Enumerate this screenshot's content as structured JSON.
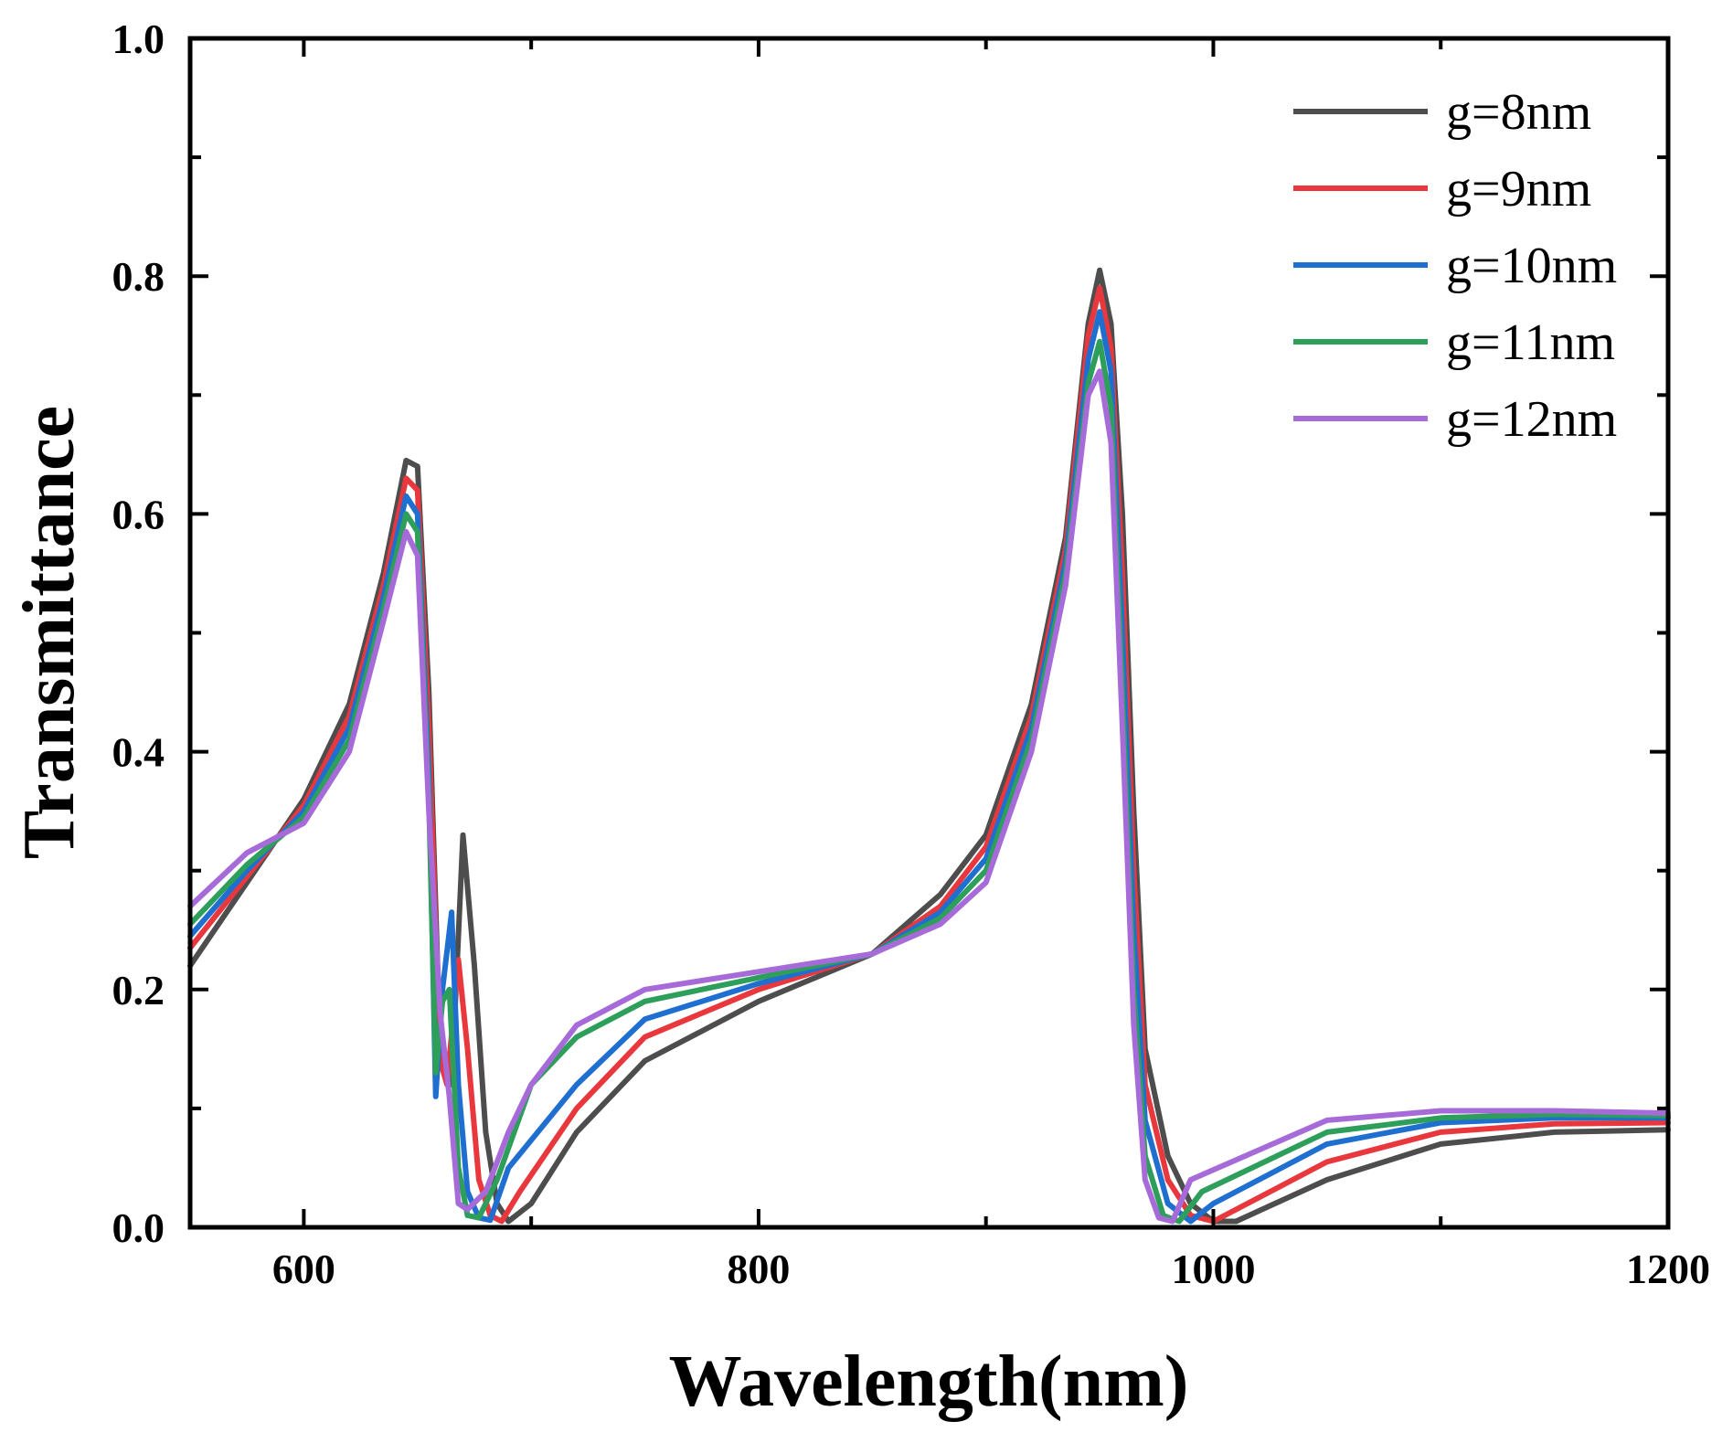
{
  "chart_data": {
    "type": "line",
    "title": "",
    "xlabel": "Wavelength(nm)",
    "ylabel": "Transmittance",
    "xlim": [
      550,
      1200
    ],
    "ylim": [
      0.0,
      1.0
    ],
    "xticks": [
      600,
      800,
      1000,
      1200
    ],
    "xtick_labels": [
      "600",
      "800",
      "1000",
      "1200"
    ],
    "yticks": [
      0.0,
      0.2,
      0.4,
      0.6,
      0.8,
      1.0
    ],
    "ytick_labels": [
      "0.0",
      "0.2",
      "0.4",
      "0.6",
      "0.8",
      "1.0"
    ],
    "grid": false,
    "legend_position": "top-right",
    "series": [
      {
        "name": "g=8nm",
        "color": "#4d4d4d",
        "x": [
          550,
          575,
          600,
          620,
          635,
          645,
          650,
          655,
          660,
          665,
          670,
          675,
          680,
          685,
          690,
          700,
          720,
          750,
          800,
          850,
          880,
          900,
          920,
          935,
          945,
          950,
          955,
          960,
          965,
          970,
          980,
          990,
          1000,
          1010,
          1050,
          1100,
          1150,
          1200
        ],
        "y": [
          0.22,
          0.29,
          0.36,
          0.44,
          0.55,
          0.645,
          0.64,
          0.45,
          0.15,
          0.12,
          0.33,
          0.22,
          0.08,
          0.02,
          0.005,
          0.02,
          0.08,
          0.14,
          0.19,
          0.23,
          0.28,
          0.33,
          0.44,
          0.58,
          0.76,
          0.805,
          0.76,
          0.6,
          0.35,
          0.15,
          0.06,
          0.02,
          0.005,
          0.005,
          0.04,
          0.07,
          0.08,
          0.082
        ]
      },
      {
        "name": "g=9nm",
        "color": "#e8383d",
        "x": [
          550,
          575,
          600,
          620,
          635,
          645,
          650,
          655,
          660,
          663,
          668,
          672,
          677,
          682,
          687,
          695,
          720,
          750,
          800,
          850,
          880,
          900,
          920,
          935,
          945,
          950,
          955,
          960,
          965,
          970,
          980,
          990,
          1000,
          1050,
          1100,
          1150,
          1200
        ],
        "y": [
          0.235,
          0.295,
          0.355,
          0.43,
          0.54,
          0.63,
          0.62,
          0.42,
          0.14,
          0.12,
          0.225,
          0.15,
          0.04,
          0.01,
          0.005,
          0.03,
          0.1,
          0.16,
          0.2,
          0.23,
          0.27,
          0.32,
          0.43,
          0.57,
          0.75,
          0.79,
          0.74,
          0.55,
          0.3,
          0.12,
          0.04,
          0.01,
          0.005,
          0.055,
          0.08,
          0.087,
          0.088
        ]
      },
      {
        "name": "g=10nm",
        "color": "#1f6fd1",
        "x": [
          550,
          575,
          600,
          620,
          635,
          645,
          650,
          655,
          658,
          661,
          665,
          668,
          672,
          677,
          682,
          690,
          720,
          750,
          800,
          850,
          880,
          900,
          920,
          935,
          945,
          950,
          955,
          960,
          965,
          970,
          980,
          990,
          1000,
          1050,
          1100,
          1150,
          1200
        ],
        "y": [
          0.245,
          0.3,
          0.35,
          0.42,
          0.53,
          0.615,
          0.6,
          0.38,
          0.11,
          0.2,
          0.265,
          0.12,
          0.03,
          0.008,
          0.006,
          0.05,
          0.12,
          0.175,
          0.205,
          0.23,
          0.265,
          0.31,
          0.42,
          0.56,
          0.73,
          0.77,
          0.72,
          0.5,
          0.25,
          0.09,
          0.02,
          0.005,
          0.02,
          0.07,
          0.088,
          0.092,
          0.092
        ]
      },
      {
        "name": "g=11nm",
        "color": "#2e9e5b",
        "x": [
          550,
          575,
          600,
          620,
          635,
          645,
          650,
          655,
          658,
          661,
          664,
          668,
          672,
          677,
          685,
          700,
          720,
          750,
          800,
          850,
          880,
          900,
          920,
          935,
          945,
          950,
          955,
          960,
          965,
          970,
          978,
          985,
          995,
          1050,
          1100,
          1150,
          1200
        ],
        "y": [
          0.255,
          0.305,
          0.345,
          0.41,
          0.52,
          0.6,
          0.585,
          0.36,
          0.13,
          0.19,
          0.2,
          0.05,
          0.01,
          0.008,
          0.04,
          0.12,
          0.16,
          0.19,
          0.21,
          0.23,
          0.26,
          0.3,
          0.41,
          0.55,
          0.71,
          0.745,
          0.69,
          0.45,
          0.2,
          0.06,
          0.01,
          0.005,
          0.03,
          0.08,
          0.092,
          0.095,
          0.094
        ]
      },
      {
        "name": "g=12nm",
        "color": "#a66bd9",
        "x": [
          550,
          575,
          600,
          620,
          635,
          645,
          650,
          655,
          660,
          664,
          668,
          672,
          680,
          690,
          700,
          720,
          750,
          800,
          850,
          880,
          900,
          920,
          935,
          945,
          950,
          955,
          960,
          965,
          970,
          976,
          982,
          990,
          1050,
          1100,
          1150,
          1200
        ],
        "y": [
          0.27,
          0.315,
          0.34,
          0.4,
          0.51,
          0.585,
          0.565,
          0.35,
          0.18,
          0.11,
          0.02,
          0.015,
          0.03,
          0.08,
          0.12,
          0.17,
          0.2,
          0.215,
          0.23,
          0.255,
          0.29,
          0.4,
          0.54,
          0.7,
          0.72,
          0.66,
          0.42,
          0.17,
          0.04,
          0.008,
          0.005,
          0.04,
          0.09,
          0.098,
          0.098,
          0.096
        ]
      }
    ]
  }
}
